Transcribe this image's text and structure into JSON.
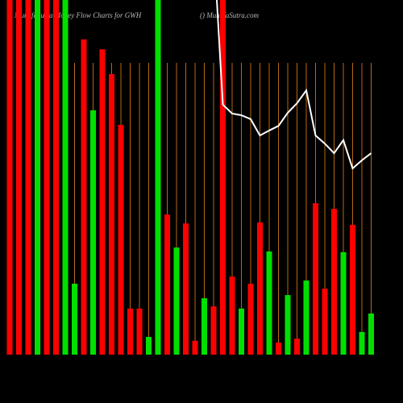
{
  "chart_data": {
    "type": "bar",
    "title": "MunafaSutra  Money Flow  Charts for GWH",
    "subtitle": "() MunafaSutra.com",
    "categories": [
      null,
      null,
      null,
      null,
      null,
      null,
      null,
      null,
      null,
      null,
      null,
      null,
      null,
      null,
      null,
      null,
      null,
      null,
      null,
      null,
      null,
      null,
      null,
      null,
      null,
      null,
      null,
      null,
      null,
      null,
      null,
      null,
      null,
      null,
      null,
      null,
      null,
      null,
      null,
      null
    ],
    "values": [
      100,
      100,
      100,
      100,
      100,
      100,
      100,
      20,
      88.9,
      68.9,
      86.1,
      79.1,
      64.8,
      13,
      13,
      5,
      100,
      39.5,
      30.2,
      37,
      3.9,
      15.9,
      13.6,
      100,
      22,
      13,
      20,
      37.3,
      29.1,
      3.4,
      16.8,
      4.5,
      20.9,
      42.7,
      18.6,
      41.1,
      28.9,
      36.6,
      6.4,
      11.6
    ],
    "colors": [
      "#ff0000",
      "#ff0000",
      "#ff0000",
      "#00e000",
      "#ff0000",
      "#ff0000",
      "#00e000",
      "#00e000",
      "#ff0000",
      "#00e000",
      "#ff0000",
      "#ff0000",
      "#ff0000",
      "#ff0000",
      "#ff0000",
      "#00e000",
      "#00e000",
      "#ff0000",
      "#00e000",
      "#ff0000",
      "#ff0000",
      "#00e000",
      "#ff0000",
      "#ff0000",
      "#ff0000",
      "#00e000",
      "#ff0000",
      "#ff0000",
      "#00e000",
      "#ff0000",
      "#00e000",
      "#ff0000",
      "#00e000",
      "#ff0000",
      "#ff0000",
      "#ff0000",
      "#00e000",
      "#ff0000",
      "#00e000",
      "#00e000"
    ],
    "line": {
      "color": "#ffffff",
      "values": [
        null,
        null,
        null,
        null,
        null,
        null,
        null,
        null,
        null,
        null,
        null,
        null,
        null,
        null,
        null,
        null,
        null,
        null,
        null,
        null,
        null,
        null,
        100,
        70.5,
        68,
        67.5,
        66.4,
        61.8,
        63.2,
        64.5,
        68.2,
        70.9,
        74.5,
        61.8,
        59.5,
        56.8,
        60.5,
        52.5,
        54.8,
        56.8
      ]
    },
    "grid_color": "#b8690f",
    "ylim": [
      0,
      100
    ]
  }
}
